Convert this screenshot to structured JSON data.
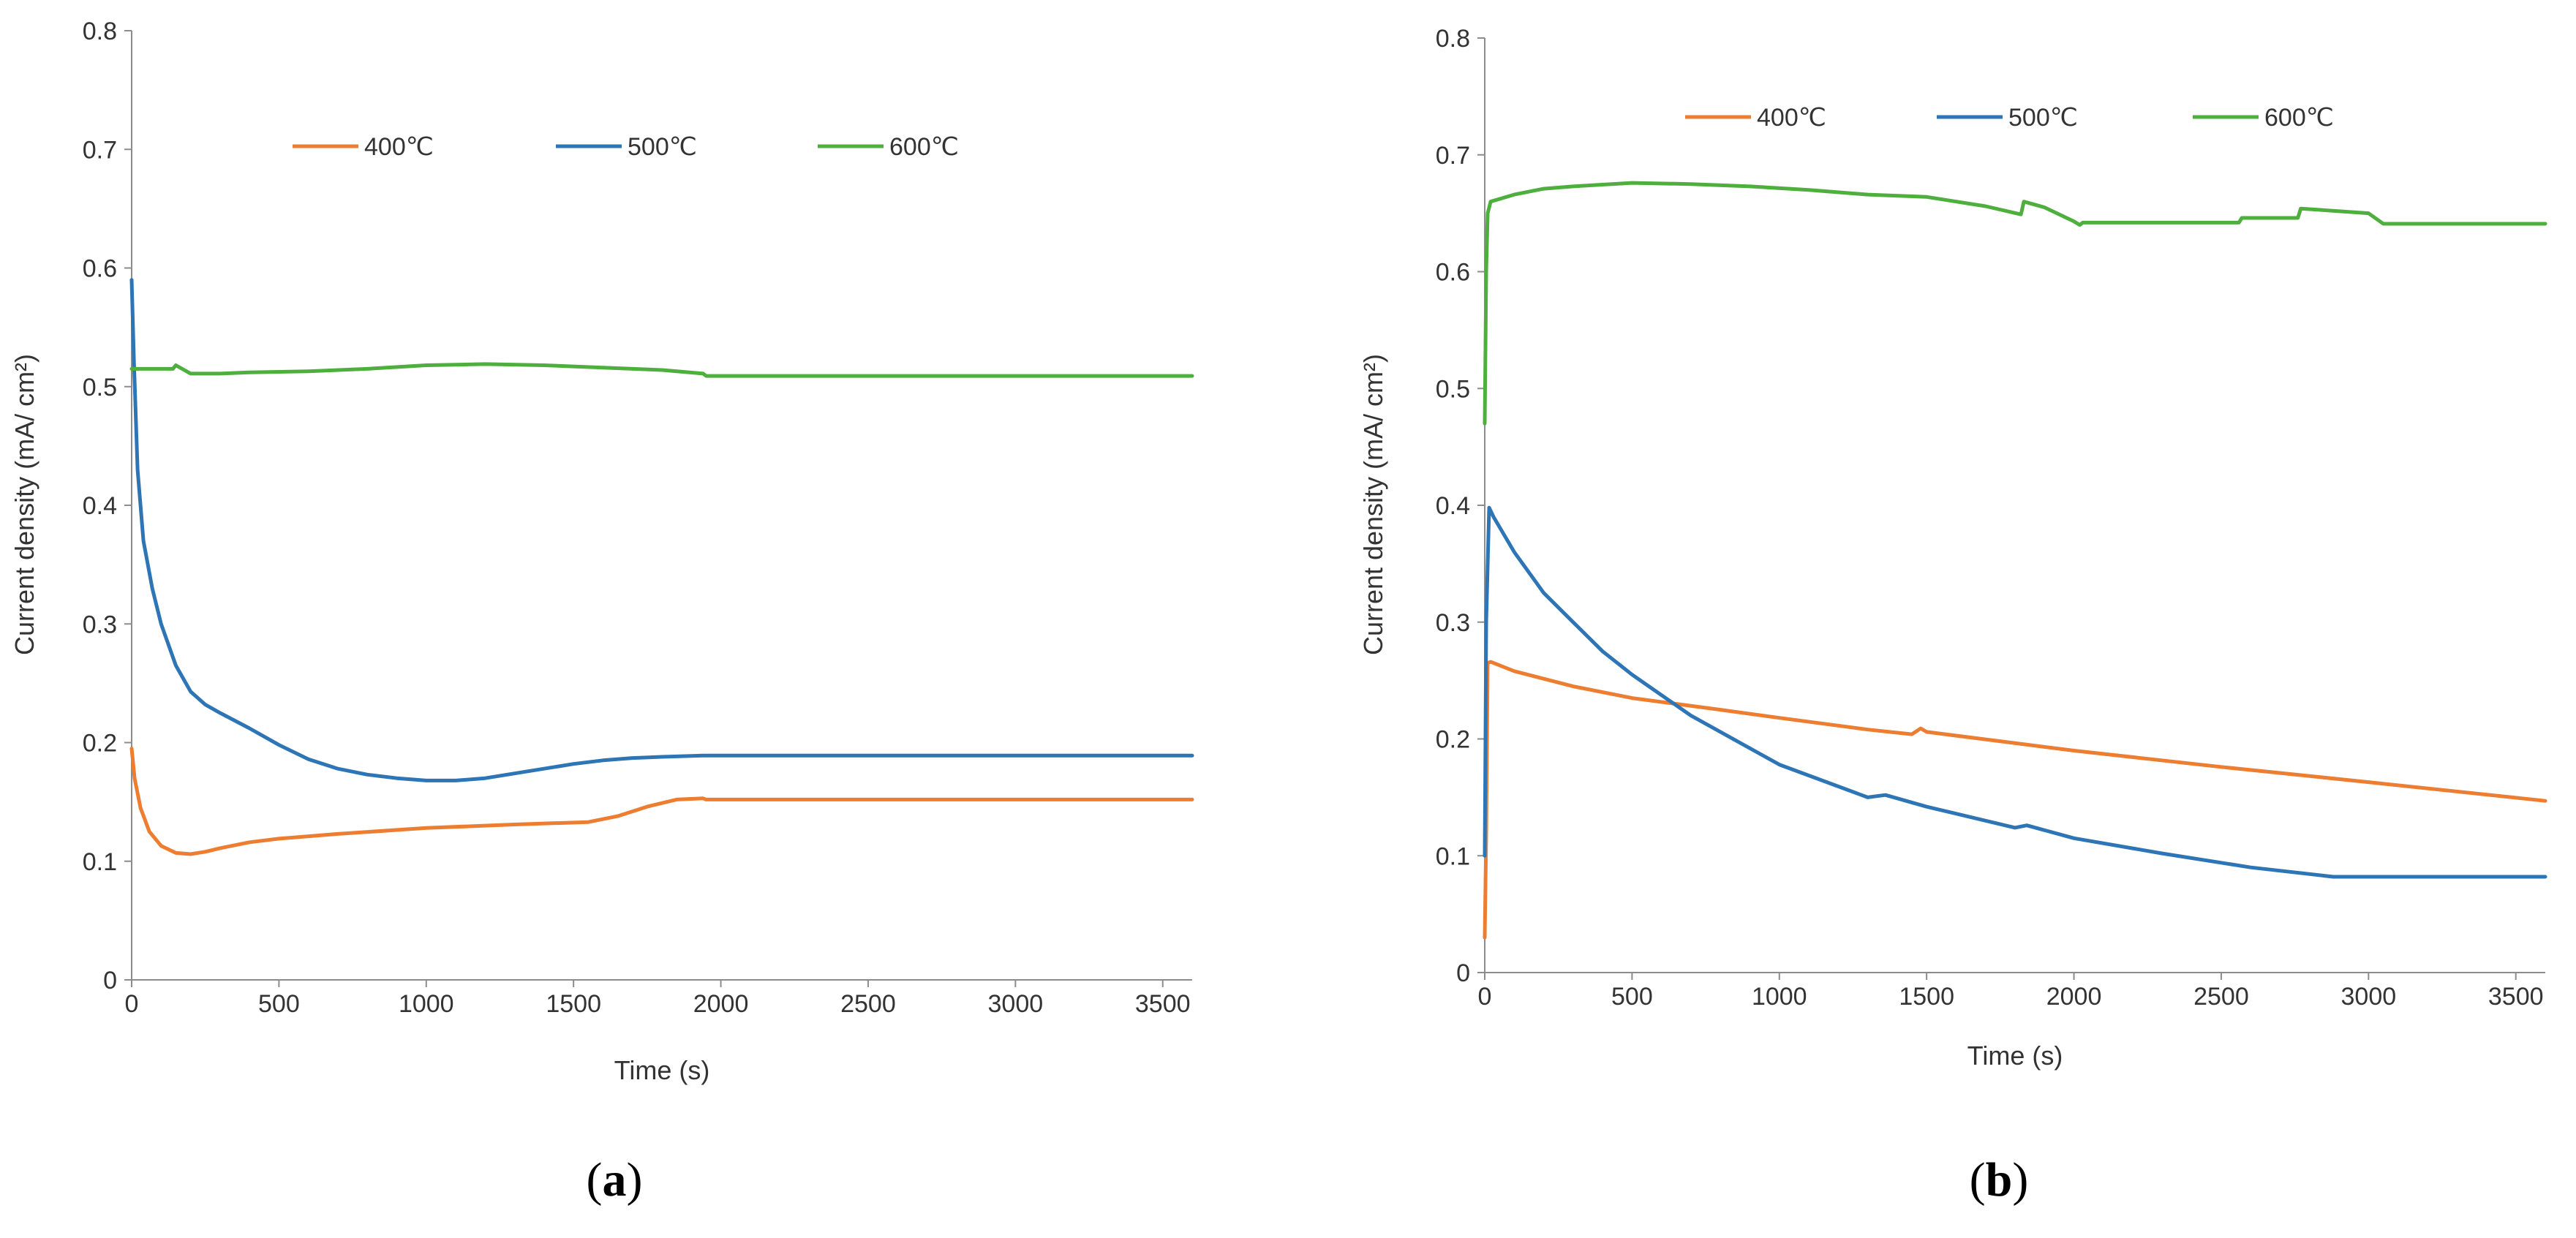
{
  "chart_data": [
    {
      "panel": "a",
      "type": "line",
      "xlabel": "Time (s)",
      "ylabel": "Current density (mA/ cm²)",
      "xlim": [
        0,
        3600
      ],
      "ylim": [
        0,
        0.8
      ],
      "xticks": [
        0,
        500,
        1000,
        1500,
        2000,
        2500,
        3000,
        3500
      ],
      "yticks": [
        0,
        0.1,
        0.2,
        0.3,
        0.4,
        0.5,
        0.6,
        0.7,
        0.8
      ],
      "ytick_labels": [
        "0",
        "0.1",
        "0.2",
        "0.3",
        "0.4",
        "0.5",
        "0.6",
        "0.7",
        "0.8"
      ],
      "legend_position": "top",
      "series": [
        {
          "name": "400℃",
          "color": "#ED7D31",
          "x": [
            0,
            10,
            30,
            60,
            100,
            150,
            200,
            250,
            300,
            400,
            500,
            700,
            1000,
            1300,
            1550,
            1650,
            1750,
            1850,
            1940,
            1950,
            2000,
            3600
          ],
          "y": [
            0.195,
            0.17,
            0.145,
            0.125,
            0.113,
            0.107,
            0.106,
            0.108,
            0.111,
            0.116,
            0.119,
            0.123,
            0.128,
            0.131,
            0.133,
            0.138,
            0.146,
            0.152,
            0.153,
            0.152,
            0.152,
            0.152
          ]
        },
        {
          "name": "500℃",
          "color": "#2E75B6",
          "x": [
            0,
            8,
            20,
            40,
            70,
            100,
            150,
            200,
            250,
            300,
            400,
            500,
            600,
            700,
            800,
            900,
            1000,
            1100,
            1200,
            1300,
            1400,
            1500,
            1600,
            1700,
            1800,
            1940,
            2000,
            3600
          ],
          "y": [
            0.59,
            0.52,
            0.43,
            0.37,
            0.33,
            0.3,
            0.265,
            0.243,
            0.232,
            0.225,
            0.212,
            0.198,
            0.186,
            0.178,
            0.173,
            0.17,
            0.168,
            0.168,
            0.17,
            0.174,
            0.178,
            0.182,
            0.185,
            0.187,
            0.188,
            0.189,
            0.189,
            0.189
          ]
        },
        {
          "name": "600℃",
          "color": "#4EAF3E",
          "x": [
            0,
            100,
            140,
            150,
            200,
            300,
            400,
            600,
            800,
            1000,
            1200,
            1400,
            1600,
            1800,
            1940,
            1950,
            2000,
            3600
          ],
          "y": [
            0.515,
            0.515,
            0.515,
            0.518,
            0.511,
            0.511,
            0.512,
            0.513,
            0.515,
            0.518,
            0.519,
            0.518,
            0.516,
            0.514,
            0.511,
            0.509,
            0.509,
            0.509
          ]
        }
      ]
    },
    {
      "panel": "b",
      "type": "line",
      "xlabel": "Time (s)",
      "ylabel": "Current density (mA/ cm²)",
      "xlim": [
        0,
        3600
      ],
      "ylim": [
        0,
        0.8
      ],
      "xticks": [
        0,
        500,
        1000,
        1500,
        2000,
        2500,
        3000,
        3500
      ],
      "yticks": [
        0,
        0.1,
        0.2,
        0.3,
        0.4,
        0.5,
        0.6,
        0.7,
        0.8
      ],
      "ytick_labels": [
        "0",
        "0.1",
        "0.2",
        "0.3",
        "0.4",
        "0.5",
        "0.6",
        "0.7",
        "0.8"
      ],
      "legend_position": "top",
      "series": [
        {
          "name": "400℃",
          "color": "#ED7D31",
          "x": [
            0,
            5,
            10,
            20,
            100,
            300,
            500,
            800,
            1000,
            1300,
            1450,
            1480,
            1500,
            2000,
            2500,
            3000,
            3600
          ],
          "y": [
            0.03,
            0.12,
            0.265,
            0.266,
            0.258,
            0.245,
            0.235,
            0.225,
            0.218,
            0.208,
            0.204,
            0.209,
            0.206,
            0.19,
            0.176,
            0.163,
            0.147
          ]
        },
        {
          "name": "500℃",
          "color": "#2E75B6",
          "x": [
            0,
            5,
            15,
            30,
            100,
            200,
            300,
            400,
            500,
            700,
            1000,
            1300,
            1360,
            1500,
            1800,
            1840,
            2000,
            2300,
            2600,
            2880,
            2890,
            3600
          ],
          "y": [
            0.1,
            0.3,
            0.398,
            0.39,
            0.36,
            0.325,
            0.3,
            0.275,
            0.255,
            0.22,
            0.178,
            0.15,
            0.152,
            0.142,
            0.124,
            0.126,
            0.115,
            0.102,
            0.09,
            0.082,
            0.082,
            0.082
          ]
        },
        {
          "name": "600℃",
          "color": "#4EAF3E",
          "x": [
            0,
            5,
            10,
            20,
            100,
            200,
            300,
            500,
            700,
            900,
            1100,
            1300,
            1500,
            1700,
            1820,
            1830,
            1900,
            2000,
            2020,
            2030,
            2560,
            2570,
            2760,
            2770,
            3000,
            3050,
            3060,
            3600
          ],
          "y": [
            0.47,
            0.6,
            0.65,
            0.66,
            0.666,
            0.671,
            0.673,
            0.676,
            0.675,
            0.673,
            0.67,
            0.666,
            0.664,
            0.656,
            0.649,
            0.66,
            0.655,
            0.643,
            0.64,
            0.642,
            0.642,
            0.646,
            0.646,
            0.654,
            0.65,
            0.641,
            0.641,
            0.641
          ]
        }
      ]
    }
  ],
  "panel_labels": [
    {
      "open": "(",
      "letter": "a",
      "close": ")"
    },
    {
      "open": "(",
      "letter": "b",
      "close": ")"
    }
  ]
}
